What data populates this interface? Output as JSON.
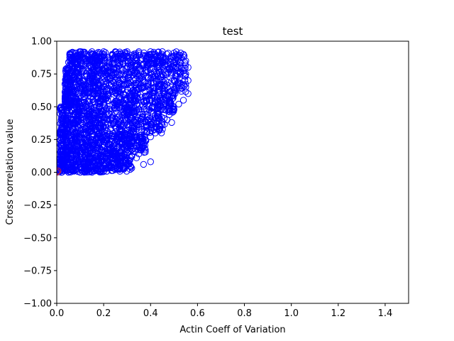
{
  "chart_data": {
    "type": "scatter",
    "title": "test",
    "xlabel": "Actin Coeff of Variation",
    "ylabel": "Cross correlation value",
    "xlim": [
      0,
      1.5
    ],
    "ylim": [
      -1.0,
      1.0
    ],
    "xticks": [
      "0.0",
      "0.2",
      "0.4",
      "0.6",
      "0.8",
      "1.0",
      "1.2",
      "1.4"
    ],
    "xtick_values": [
      0.0,
      0.2,
      0.4,
      0.6,
      0.8,
      1.0,
      1.2,
      1.4
    ],
    "yticks": [
      "−1.00",
      "−0.75",
      "−0.50",
      "−0.25",
      "0.00",
      "0.25",
      "0.50",
      "0.75",
      "1.00"
    ],
    "ytick_values": [
      -1.0,
      -0.75,
      -0.5,
      -0.25,
      0.0,
      0.25,
      0.5,
      0.75,
      1.0
    ],
    "grid": false,
    "marker": "open-circle",
    "series": [
      {
        "color": "#0000ff",
        "points": [
          [
            0.06,
            0.91
          ],
          [
            0.1,
            0.92
          ],
          [
            0.15,
            0.92
          ],
          [
            0.2,
            0.92
          ],
          [
            0.25,
            0.92
          ],
          [
            0.3,
            0.92
          ],
          [
            0.35,
            0.92
          ],
          [
            0.4,
            0.92
          ],
          [
            0.45,
            0.92
          ],
          [
            0.5,
            0.91
          ],
          [
            0.54,
            0.9
          ],
          [
            0.55,
            0.85
          ],
          [
            0.56,
            0.8
          ],
          [
            0.55,
            0.75
          ],
          [
            0.56,
            0.7
          ],
          [
            0.55,
            0.65
          ],
          [
            0.56,
            0.6
          ],
          [
            0.54,
            0.55
          ],
          [
            0.52,
            0.52
          ],
          [
            0.5,
            0.48
          ],
          [
            0.48,
            0.44
          ],
          [
            0.47,
            0.4
          ],
          [
            0.49,
            0.38
          ],
          [
            0.45,
            0.36
          ],
          [
            0.44,
            0.33
          ],
          [
            0.42,
            0.3
          ],
          [
            0.4,
            0.27
          ],
          [
            0.38,
            0.24
          ],
          [
            0.37,
            0.2
          ],
          [
            0.36,
            0.17
          ],
          [
            0.35,
            0.14
          ],
          [
            0.34,
            0.11
          ],
          [
            0.4,
            0.08
          ],
          [
            0.37,
            0.06
          ],
          [
            0.3,
            0.06
          ],
          [
            0.32,
            0.12
          ],
          [
            0.27,
            0.03
          ],
          [
            0.25,
            0.02
          ],
          [
            0.2,
            0.01
          ],
          [
            0.15,
            0.0
          ],
          [
            0.1,
            0.0
          ],
          [
            0.05,
            0.0
          ],
          [
            0.02,
            0.0
          ],
          [
            0.01,
            0.05
          ],
          [
            0.01,
            0.1
          ],
          [
            0.02,
            0.2
          ],
          [
            0.02,
            0.3
          ],
          [
            0.03,
            0.4
          ],
          [
            0.03,
            0.5
          ],
          [
            0.04,
            0.6
          ],
          [
            0.04,
            0.7
          ],
          [
            0.05,
            0.78
          ],
          [
            0.05,
            0.84
          ],
          [
            0.06,
            0.88
          ],
          [
            0.1,
            0.5
          ],
          [
            0.15,
            0.6
          ],
          [
            0.2,
            0.4
          ],
          [
            0.25,
            0.7
          ],
          [
            0.3,
            0.5
          ],
          [
            0.35,
            0.8
          ],
          [
            0.4,
            0.6
          ],
          [
            0.45,
            0.75
          ],
          [
            0.5,
            0.7
          ],
          [
            0.12,
            0.2
          ],
          [
            0.18,
            0.3
          ],
          [
            0.22,
            0.15
          ],
          [
            0.28,
            0.35
          ],
          [
            0.33,
            0.45
          ],
          [
            0.38,
            0.55
          ],
          [
            0.43,
            0.5
          ],
          [
            0.08,
            0.1
          ],
          [
            0.14,
            0.05
          ],
          [
            0.24,
            0.1
          ]
        ]
      },
      {
        "color": "#d62728",
        "points": [
          [
            0.0,
            0.0
          ],
          [
            0.005,
            0.01
          ]
        ]
      }
    ]
  }
}
